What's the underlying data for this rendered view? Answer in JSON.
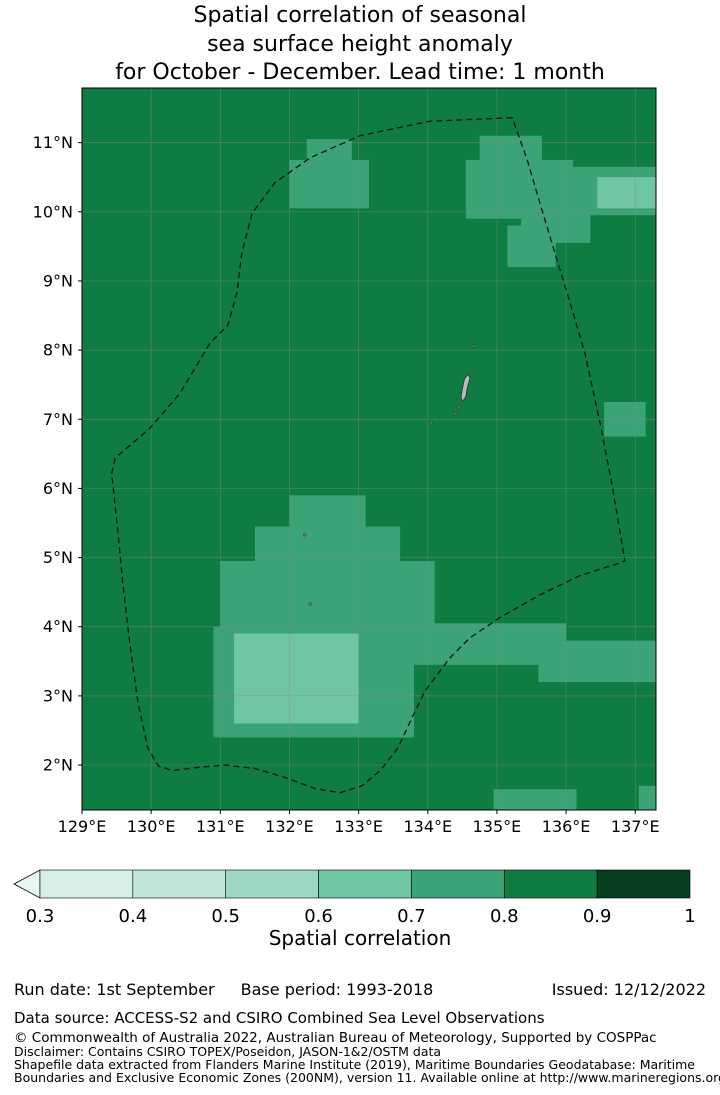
{
  "title": {
    "line1": "Spatial correlation of seasonal",
    "line2": "sea surface height anomaly",
    "line3": "for October - December. Lead time: 1 month"
  },
  "chart_data": {
    "type": "heatmap",
    "title": "Spatial correlation of seasonal sea surface height anomaly for October - December. Lead time: 1 month",
    "season": "October - December",
    "lead_time": "1 month",
    "axes": {
      "lon_min": 129.0,
      "lon_max": 137.3,
      "lat_min": 1.35,
      "lat_max": 11.79,
      "lon_ticks": [
        129,
        130,
        131,
        132,
        133,
        134,
        135,
        136,
        137
      ],
      "lon_tick_labels": [
        "129°E",
        "130°E",
        "131°E",
        "132°E",
        "133°E",
        "134°E",
        "135°E",
        "136°E",
        "137°E"
      ],
      "lat_ticks": [
        2,
        3,
        4,
        5,
        6,
        7,
        8,
        9,
        10,
        11
      ],
      "lat_tick_labels": [
        "2°N",
        "3°N",
        "4°N",
        "5°N",
        "6°N",
        "7°N",
        "8°N",
        "9°N",
        "10°N",
        "11°N"
      ],
      "grid": true
    },
    "field": {
      "units": "correlation",
      "base_level": 0.85,
      "patches": [
        [
          132.0,
          10.05,
          133.15,
          10.75,
          0.75
        ],
        [
          132.25,
          10.6,
          132.9,
          11.05,
          0.75
        ],
        [
          134.75,
          10.3,
          135.65,
          11.1,
          0.75
        ],
        [
          134.55,
          9.9,
          136.1,
          10.75,
          0.75
        ],
        [
          135.35,
          9.55,
          136.35,
          10.4,
          0.75
        ],
        [
          136.1,
          9.95,
          137.3,
          10.65,
          0.75
        ],
        [
          136.45,
          10.05,
          137.3,
          10.5,
          0.65
        ],
        [
          135.15,
          9.2,
          135.85,
          9.8,
          0.75
        ],
        [
          136.55,
          6.75,
          137.15,
          7.25,
          0.75
        ],
        [
          132.0,
          5.35,
          133.1,
          5.9,
          0.75
        ],
        [
          131.5,
          4.85,
          133.6,
          5.45,
          0.75
        ],
        [
          131.0,
          3.85,
          134.1,
          4.95,
          0.75
        ],
        [
          130.9,
          2.4,
          133.8,
          4.0,
          0.75
        ],
        [
          131.2,
          2.6,
          133.0,
          3.9,
          0.65
        ],
        [
          133.6,
          3.45,
          136.0,
          4.05,
          0.75
        ],
        [
          135.6,
          3.2,
          137.3,
          3.8,
          0.75
        ],
        [
          134.95,
          1.35,
          136.15,
          1.65,
          0.75
        ],
        [
          137.05,
          1.35,
          137.3,
          1.7,
          0.75
        ]
      ]
    },
    "boundary": {
      "name": "EEZ boundary",
      "style": "dashed",
      "points": [
        [
          135.22,
          11.36
        ],
        [
          134.03,
          11.31
        ],
        [
          133.02,
          11.1
        ],
        [
          132.3,
          10.78
        ],
        [
          131.79,
          10.42
        ],
        [
          131.46,
          9.98
        ],
        [
          131.31,
          9.4
        ],
        [
          131.24,
          8.83
        ],
        [
          131.11,
          8.36
        ],
        [
          130.85,
          8.1
        ],
        [
          130.42,
          7.38
        ],
        [
          129.98,
          6.87
        ],
        [
          129.48,
          6.44
        ],
        [
          129.43,
          6.22
        ],
        [
          129.52,
          5.36
        ],
        [
          129.59,
          4.63
        ],
        [
          129.69,
          3.77
        ],
        [
          129.81,
          2.9
        ],
        [
          129.95,
          2.25
        ],
        [
          130.1,
          1.99
        ],
        [
          130.3,
          1.92
        ],
        [
          130.71,
          1.97
        ],
        [
          131.07,
          2.0
        ],
        [
          131.5,
          1.95
        ],
        [
          131.94,
          1.82
        ],
        [
          132.37,
          1.66
        ],
        [
          132.73,
          1.6
        ],
        [
          133.05,
          1.7
        ],
        [
          133.31,
          1.92
        ],
        [
          133.57,
          2.25
        ],
        [
          133.77,
          2.68
        ],
        [
          133.96,
          3.07
        ],
        [
          134.32,
          3.55
        ],
        [
          134.61,
          3.84
        ],
        [
          135.04,
          4.13
        ],
        [
          135.62,
          4.46
        ],
        [
          136.2,
          4.74
        ],
        [
          136.71,
          4.9
        ],
        [
          136.85,
          4.95
        ],
        [
          136.66,
          6.08
        ],
        [
          136.49,
          6.95
        ],
        [
          136.27,
          7.96
        ],
        [
          136.06,
          8.68
        ],
        [
          135.84,
          9.4
        ],
        [
          135.62,
          10.13
        ],
        [
          135.45,
          10.71
        ],
        [
          135.3,
          11.14
        ]
      ]
    },
    "islands": {
      "main_island": [
        [
          134.5,
          7.26
        ],
        [
          134.55,
          7.32
        ],
        [
          134.57,
          7.45
        ],
        [
          134.61,
          7.6
        ],
        [
          134.58,
          7.65
        ],
        [
          134.53,
          7.58
        ],
        [
          134.5,
          7.44
        ],
        [
          134.48,
          7.32
        ]
      ],
      "dots": [
        [
          134.66,
          8.06
        ],
        [
          134.45,
          7.18
        ],
        [
          134.4,
          7.08
        ],
        [
          134.05,
          6.95
        ],
        [
          132.22,
          5.33
        ],
        [
          132.3,
          4.33
        ]
      ]
    },
    "colorbar": {
      "label": "Spatial correlation",
      "orientation": "horizontal",
      "under_color": "#e9f7f2",
      "bins": [
        {
          "from": 0.3,
          "to": 0.4,
          "color": "#d8efe7"
        },
        {
          "from": 0.4,
          "to": 0.5,
          "color": "#c1e6d7"
        },
        {
          "from": 0.5,
          "to": 0.6,
          "color": "#9ed8c2"
        },
        {
          "from": 0.6,
          "to": 0.7,
          "color": "#70c5a2"
        },
        {
          "from": 0.7,
          "to": 0.8,
          "color": "#3ba376"
        },
        {
          "from": 0.8,
          "to": 0.9,
          "color": "#0f7c42"
        },
        {
          "from": 0.9,
          "to": 1.0,
          "color": "#07401e"
        }
      ],
      "ticks": [
        "0.3",
        "0.4",
        "0.5",
        "0.6",
        "0.7",
        "0.8",
        "0.9",
        "1"
      ]
    }
  },
  "footer": {
    "run_date": "Run date: 1st September",
    "base_period": "Base period: 1993-2018",
    "issued": "Issued: 12/12/2022",
    "data_source": "Data source: ACCESS-S2 and CSIRO Combined Sea Level Observations",
    "copyright": "© Commonwealth of Australia 2022, Australian Bureau of Meteorology, Supported by COSPPac",
    "disclaimer": "Disclaimer: Contains CSIRO TOPEX/Poseidon, JASON-1&2/OSTM data",
    "shapefile_line1": "Shapefile data extracted from Flanders Marine Institute (2019), Maritime Boundaries Geodatabase: Maritime",
    "shapefile_line2": "Boundaries and Exclusive Economic Zones (200NM), version 11. Available online at http://www.marineregions.org/."
  }
}
